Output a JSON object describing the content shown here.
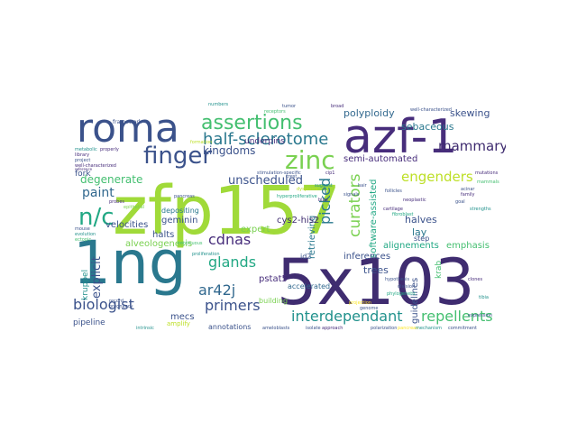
{
  "wordcloud": {
    "palette": {
      "dark_purple": "#3f2c70",
      "purple": "#472d7b",
      "indigo": "#3b528b",
      "blue": "#31688e",
      "steel": "#2a788e",
      "teal": "#21918c",
      "sea": "#22a884",
      "green": "#44bf70",
      "lime": "#7ad151",
      "yellow_green": "#bddf26",
      "yellow": "#fde725"
    },
    "words": [
      {
        "text": "zfp157",
        "color": "#a0da39"
      },
      {
        "text": "5x103",
        "color": "#3f2c70"
      },
      {
        "text": "1ng",
        "color": "#2a788e"
      },
      {
        "text": "azf-1",
        "color": "#472d7b"
      },
      {
        "text": "roma",
        "color": "#3b528b"
      },
      {
        "text": "assertions",
        "color": "#44bf70"
      },
      {
        "text": "finger",
        "color": "#3b528b"
      },
      {
        "text": "zinc",
        "color": "#7ad151"
      },
      {
        "text": "n/c",
        "color": "#22a884"
      },
      {
        "text": "half-sclerotome",
        "color": "#2a788e"
      },
      {
        "text": "mammary",
        "color": "#3f2c70"
      },
      {
        "text": "eighty-eight",
        "color": "#21918c"
      },
      {
        "text": "paint",
        "color": "#31688e"
      },
      {
        "text": "engenders",
        "color": "#bddf26"
      },
      {
        "text": "curators",
        "color": "#7ad151"
      },
      {
        "text": "kingdoms",
        "color": "#3b528b"
      },
      {
        "text": "degenerate",
        "color": "#44bf70"
      },
      {
        "text": "unscheduled",
        "color": "#3b528b"
      },
      {
        "text": "picked",
        "color": "#2a788e"
      },
      {
        "text": "cdnas",
        "color": "#472d7b"
      },
      {
        "text": "glands",
        "color": "#22a884"
      },
      {
        "text": "ar42j",
        "color": "#31688e"
      },
      {
        "text": "biologist",
        "color": "#3b528b"
      },
      {
        "text": "primers",
        "color": "#3b528b"
      },
      {
        "text": "interdependant",
        "color": "#21918c"
      },
      {
        "text": "repellents",
        "color": "#44bf70"
      },
      {
        "text": "explicit",
        "color": "#3b528b"
      },
      {
        "text": "polyploidy",
        "color": "#31688e"
      },
      {
        "text": "skewing",
        "color": "#3b528b"
      },
      {
        "text": "sebaceous",
        "color": "#2a788e"
      },
      {
        "text": "semi-automated",
        "color": "#472d7b"
      },
      {
        "text": "software-assisted",
        "color": "#22a884"
      },
      {
        "text": "halves",
        "color": "#3b528b"
      },
      {
        "text": "lay",
        "color": "#2a788e"
      },
      {
        "text": "alignements",
        "color": "#22a884"
      },
      {
        "text": "emphasis",
        "color": "#44bf70"
      },
      {
        "text": "velocities",
        "color": "#3b528b"
      },
      {
        "text": "halts",
        "color": "#3b528b"
      },
      {
        "text": "geminin",
        "color": "#3b528b"
      },
      {
        "text": "alveologenesis",
        "color": "#7ad151"
      },
      {
        "text": "expert",
        "color": "#7ad151"
      },
      {
        "text": "depositing",
        "color": "#2a788e"
      },
      {
        "text": "fork",
        "color": "#3b528b"
      },
      {
        "text": "underpins",
        "color": "#472d7b"
      },
      {
        "text": "retrieving",
        "color": "#2a788e"
      },
      {
        "text": "cys2-his2",
        "color": "#3f2c70"
      },
      {
        "text": "inferences",
        "color": "#3b528b"
      },
      {
        "text": "trees",
        "color": "#3b528b"
      },
      {
        "text": "guidelines",
        "color": "#3b528b"
      },
      {
        "text": "pstat5",
        "color": "#472d7b"
      },
      {
        "text": "mecs",
        "color": "#3b528b"
      },
      {
        "text": "kruppel",
        "color": "#21918c"
      },
      {
        "text": "pipeline",
        "color": "#3b528b"
      },
      {
        "text": "annotations",
        "color": "#3b528b"
      },
      {
        "text": "accelerated",
        "color": "#31688e"
      },
      {
        "text": "step",
        "color": "#3b528b"
      },
      {
        "text": "krab",
        "color": "#44bf70"
      },
      {
        "text": "id2",
        "color": "#3b528b"
      },
      {
        "text": "building",
        "color": "#7ad151"
      },
      {
        "text": "amplify",
        "color": "#bddf26"
      },
      {
        "text": "extent",
        "color": "#fde725"
      },
      {
        "text": "division",
        "color": "#3b528b"
      },
      {
        "text": "cartilage",
        "color": "#472d7b"
      },
      {
        "text": "follicles",
        "color": "#3b528b"
      },
      {
        "text": "fibroblast",
        "color": "#22a884"
      },
      {
        "text": "polarization",
        "color": "#3b528b"
      },
      {
        "text": "tibia",
        "color": "#21918c"
      },
      {
        "text": "projection",
        "color": "#fde725"
      },
      {
        "text": "mammals",
        "color": "#44bf70"
      },
      {
        "text": "hair",
        "color": "#3b528b"
      },
      {
        "text": "neoplastic",
        "color": "#472d7b"
      },
      {
        "text": "ameloblasts",
        "color": "#3b528b"
      },
      {
        "text": "hypothesis",
        "color": "#3b528b"
      },
      {
        "text": "intrinsic",
        "color": "#21918c"
      },
      {
        "text": "genome",
        "color": "#7ad151"
      },
      {
        "text": "pancreas",
        "color": "#fde725"
      },
      {
        "text": "project",
        "color": "#3b528b"
      },
      {
        "text": "library",
        "color": "#472d7b"
      },
      {
        "text": "metabolic",
        "color": "#21918c"
      },
      {
        "text": "formation",
        "color": "#bddf26"
      },
      {
        "text": "ectopic",
        "color": "#44bf70"
      },
      {
        "text": "mouse",
        "color": "#3b528b"
      },
      {
        "text": "family",
        "color": "#472d7b"
      },
      {
        "text": "strengths",
        "color": "#21918c"
      },
      {
        "text": "goal",
        "color": "#3b528b"
      },
      {
        "text": "epithelial",
        "color": "#7ad151"
      },
      {
        "text": "dysplasia",
        "color": "#bddf26"
      },
      {
        "text": "signals",
        "color": "#3b528b"
      },
      {
        "text": "evolution",
        "color": "#21918c"
      },
      {
        "text": "probes",
        "color": "#472d7b"
      },
      {
        "text": "record",
        "color": "#3b528b"
      },
      {
        "text": "phylogenetic",
        "color": "#22a884"
      },
      {
        "text": "crest",
        "color": "#3b528b"
      },
      {
        "text": "cip1",
        "color": "#472d7b"
      },
      {
        "text": "clones",
        "color": "#3b528b"
      },
      {
        "text": "blue",
        "color": "#472d7b"
      },
      {
        "text": "mutations",
        "color": "#21918c"
      },
      {
        "text": "acinar",
        "color": "#3b528b"
      },
      {
        "text": "tumor",
        "color": "#44bf70"
      },
      {
        "text": "receptors",
        "color": "#fde725"
      },
      {
        "text": "stimulation-specific",
        "color": "#3b528b"
      },
      {
        "text": "framework",
        "color": "#472d7b"
      },
      {
        "text": "broad",
        "color": "#3b528b"
      },
      {
        "text": "well-characterized",
        "color": "#472d7b"
      },
      {
        "text": "suggest",
        "color": "#21918c"
      },
      {
        "text": "properly",
        "color": "#3b528b"
      },
      {
        "text": "hyperproliferative",
        "color": "#472d7b"
      },
      {
        "text": "numbers",
        "color": "#22a884"
      },
      {
        "text": "isolate",
        "color": "#3b528b"
      },
      {
        "text": "approach",
        "color": "#472d7b"
      },
      {
        "text": "pancreas",
        "color": "#3b528b"
      },
      {
        "text": "mechanism",
        "color": "#21918c"
      },
      {
        "text": "continuous",
        "color": "#3b528b"
      },
      {
        "text": "commitment",
        "color": "#3b528b"
      },
      {
        "text": "proliferation",
        "color": "#44bf70"
      },
      {
        "text": "expression",
        "color": "#21918c"
      },
      {
        "text": "pregnancy",
        "color": "#3b528b"
      },
      {
        "text": "reference",
        "color": "#472d7b"
      },
      {
        "text": "gene",
        "color": "#3b528b"
      },
      {
        "text": "variant",
        "color": "#44bf70"
      },
      {
        "text": "kinase",
        "color": "#3b528b"
      },
      {
        "text": "search",
        "color": "#472d7b"
      },
      {
        "text": "sections",
        "color": "#3b528b"
      },
      {
        "text": "embryo",
        "color": "#21918c"
      },
      {
        "text": "neuron",
        "color": "#472d7b"
      },
      {
        "text": "lineage",
        "color": "#3b528b"
      },
      {
        "text": "niche",
        "color": "#44bf70"
      },
      {
        "text": "active",
        "color": "#3b528b"
      },
      {
        "text": "mature",
        "color": "#472d7b"
      },
      {
        "text": "layers",
        "color": "#3b528b"
      }
    ]
  }
}
